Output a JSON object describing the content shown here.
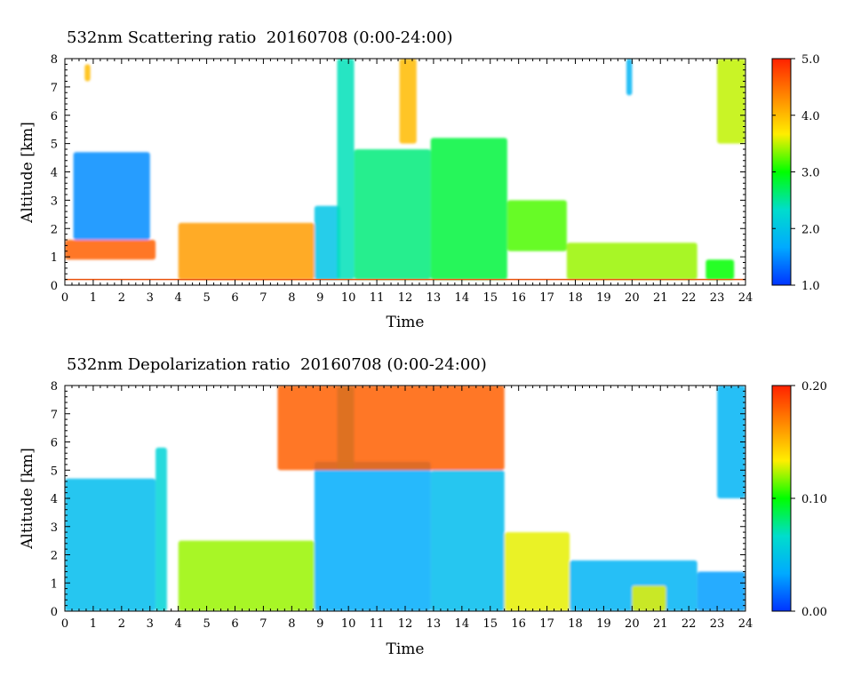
{
  "chart_data": [
    {
      "type": "heatmap",
      "title": "532nm Scattering ratio  20160708 (0:00-24:00)",
      "xlabel": "Time",
      "ylabel": "Altitude [km]",
      "xlim": [
        0,
        24
      ],
      "ylim": [
        0,
        8
      ],
      "x_ticks": [
        "0",
        "1",
        "2",
        "3",
        "4",
        "5",
        "6",
        "7",
        "8",
        "9",
        "10",
        "11",
        "12",
        "13",
        "14",
        "15",
        "16",
        "17",
        "18",
        "19",
        "20",
        "21",
        "22",
        "23",
        "24"
      ],
      "y_ticks": [
        "0",
        "1",
        "2",
        "3",
        "4",
        "5",
        "6",
        "7",
        "8"
      ],
      "colorbar": {
        "range": [
          1.0,
          5.0
        ],
        "tick_labels": [
          "1.0",
          "2.0",
          "3.0",
          "4.0",
          "5.0"
        ],
        "tick_values": [
          1.0,
          2.0,
          3.0,
          4.0,
          5.0
        ],
        "colors": [
          "#0033ff",
          "#00aaff",
          "#00ddcc",
          "#00ff00",
          "#ffee00",
          "#ff8800",
          "#ff2200"
        ]
      },
      "grid": false,
      "features": [
        {
          "x": [
            0.0,
            3.2
          ],
          "y": [
            0.9,
            1.6
          ],
          "value": 4.6
        },
        {
          "x": [
            0.3,
            3.0
          ],
          "y": [
            1.6,
            4.7
          ],
          "value": 1.5
        },
        {
          "x": [
            0.7,
            0.9
          ],
          "y": [
            7.2,
            7.8
          ],
          "value": 4.0
        },
        {
          "x": [
            4.0,
            8.8
          ],
          "y": [
            0.2,
            2.2
          ],
          "value": 4.2
        },
        {
          "x": [
            8.8,
            9.7
          ],
          "y": [
            0.2,
            2.8
          ],
          "value": 2.0
        },
        {
          "x": [
            9.6,
            10.2
          ],
          "y": [
            0.2,
            8.0
          ],
          "value": 2.4
        },
        {
          "x": [
            10.2,
            12.9
          ],
          "y": [
            0.2,
            4.8
          ],
          "value": 2.6
        },
        {
          "x": [
            11.8,
            12.4
          ],
          "y": [
            5.0,
            8.0
          ],
          "value": 4.0
        },
        {
          "x": [
            12.9,
            15.6
          ],
          "y": [
            0.2,
            5.2
          ],
          "value": 2.8
        },
        {
          "x": [
            15.6,
            17.7
          ],
          "y": [
            1.2,
            3.0
          ],
          "value": 3.2
        },
        {
          "x": [
            17.7,
            22.3
          ],
          "y": [
            0.2,
            1.5
          ],
          "value": 3.4
        },
        {
          "x": [
            22.6,
            23.6
          ],
          "y": [
            0.2,
            0.9
          ],
          "value": 3.0
        },
        {
          "x": [
            23.0,
            24.0
          ],
          "y": [
            5.0,
            8.0
          ],
          "value": 3.5
        },
        {
          "x": [
            19.8,
            20.0
          ],
          "y": [
            6.7,
            8.0
          ],
          "value": 1.8
        }
      ],
      "reference_line": {
        "y": 0.2,
        "color": "#e8500a"
      }
    },
    {
      "type": "heatmap",
      "title": "532nm Depolarization ratio  20160708 (0:00-24:00)",
      "xlabel": "Time",
      "ylabel": "Altitude [km]",
      "xlim": [
        0,
        24
      ],
      "ylim": [
        0,
        8
      ],
      "x_ticks": [
        "0",
        "1",
        "2",
        "3",
        "4",
        "5",
        "6",
        "7",
        "8",
        "9",
        "10",
        "11",
        "12",
        "13",
        "14",
        "15",
        "16",
        "17",
        "18",
        "19",
        "20",
        "21",
        "22",
        "23",
        "24"
      ],
      "y_ticks": [
        "0",
        "1",
        "2",
        "3",
        "4",
        "5",
        "6",
        "7",
        "8"
      ],
      "colorbar": {
        "range": [
          0.0,
          0.2
        ],
        "tick_labels": [
          "0.00",
          "0.10",
          "0.20"
        ],
        "tick_values": [
          0.0,
          0.1,
          0.2
        ],
        "colors": [
          "#0033ff",
          "#00aaff",
          "#00ddcc",
          "#00ff00",
          "#ffee00",
          "#ff8800",
          "#ff2200"
        ]
      },
      "grid": false,
      "features": [
        {
          "x": [
            0.0,
            3.2
          ],
          "y": [
            0.0,
            4.7
          ],
          "value": 0.045
        },
        {
          "x": [
            3.2,
            3.6
          ],
          "y": [
            0.0,
            5.8
          ],
          "value": 0.06
        },
        {
          "x": [
            4.0,
            8.8
          ],
          "y": [
            0.0,
            2.5
          ],
          "value": 0.12
        },
        {
          "x": [
            8.8,
            12.9
          ],
          "y": [
            0.0,
            5.3
          ],
          "value": 0.035
        },
        {
          "x": [
            9.6,
            10.2
          ],
          "y": [
            5.0,
            8.0
          ],
          "value": 0.06
        },
        {
          "x": [
            12.9,
            15.5
          ],
          "y": [
            0.0,
            5.0
          ],
          "value": 0.045
        },
        {
          "x": [
            15.5,
            17.8
          ],
          "y": [
            0.0,
            2.8
          ],
          "value": 0.13
        },
        {
          "x": [
            17.8,
            22.3
          ],
          "y": [
            0.0,
            1.8
          ],
          "value": 0.04
        },
        {
          "x": [
            20.0,
            21.2
          ],
          "y": [
            0.0,
            0.9
          ],
          "value": 0.13
        },
        {
          "x": [
            22.3,
            24.0
          ],
          "y": [
            0.0,
            1.4
          ],
          "value": 0.03
        },
        {
          "x": [
            23.0,
            24.0
          ],
          "y": [
            4.0,
            8.0
          ],
          "value": 0.04
        },
        {
          "x": [
            7.5,
            15.5
          ],
          "y": [
            5.0,
            8.0
          ],
          "value": 0.18
        }
      ],
      "reference_line": null
    }
  ]
}
